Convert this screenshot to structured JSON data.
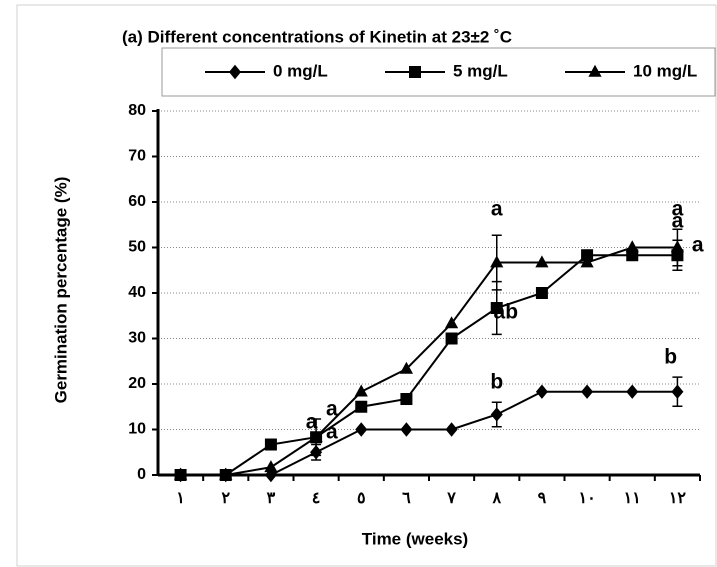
{
  "chart_data": {
    "type": "line",
    "title": "(a) Different concentrations of Kinetin at 23±2 ˚C",
    "x_label": "Time (weeks)",
    "y_label": "Germination percentage (%)",
    "categories": [
      "١",
      "٢",
      "٣",
      "٤",
      "٥",
      "٦",
      "٧",
      "٨",
      "٩",
      "١٠",
      "١١",
      "١٢"
    ],
    "series": [
      {
        "name": "0 mg/L",
        "color": "#000000",
        "marker": "diamond",
        "values": [
          0,
          0,
          0,
          5,
          10,
          10,
          10,
          13.3,
          18.3,
          18.3,
          18.3,
          18.3
        ],
        "errors": [
          null,
          null,
          null,
          1.7,
          null,
          null,
          null,
          2.7,
          null,
          null,
          null,
          3.2
        ]
      },
      {
        "name": "5 mg/L",
        "color": "#000000",
        "marker": "square",
        "values": [
          0,
          0,
          6.7,
          8.3,
          15,
          16.7,
          30,
          36.7,
          40,
          48.3,
          48.3,
          48.3
        ],
        "errors": [
          null,
          null,
          null,
          4,
          null,
          null,
          null,
          5.8,
          null,
          null,
          null,
          3.3
        ]
      },
      {
        "name": "10 mg/L",
        "color": "#000000",
        "marker": "triangle",
        "values": [
          0,
          0,
          1.7,
          8.3,
          18.3,
          23.3,
          33.3,
          46.7,
          46.7,
          46.7,
          50,
          50
        ],
        "errors": [
          null,
          null,
          null,
          null,
          null,
          null,
          null,
          6,
          null,
          null,
          null,
          4
        ]
      }
    ],
    "annotations": [
      {
        "text": "a",
        "x": 3.9,
        "y": 11.4
      },
      {
        "text": "a",
        "x": 4.35,
        "y": 14.3
      },
      {
        "text": "a",
        "x": 4.35,
        "y": 9.2
      },
      {
        "text": "a",
        "x": 8.0,
        "y": 58.2
      },
      {
        "text": "ab",
        "x": 8.2,
        "y": 35.6
      },
      {
        "text": "b",
        "x": 8.0,
        "y": 20.2
      },
      {
        "text": "a",
        "x": 12.0,
        "y": 58.2
      },
      {
        "text": "a",
        "x": 12.0,
        "y": 55.6
      },
      {
        "text": "a",
        "x": 12.45,
        "y": 50.3
      },
      {
        "text": "b",
        "x": 11.85,
        "y": 25.7
      }
    ],
    "ylim": [
      0,
      80
    ],
    "yticks": [
      0,
      10,
      20,
      30,
      40,
      50,
      60,
      70,
      80
    ],
    "grid": true,
    "legend": "top"
  }
}
